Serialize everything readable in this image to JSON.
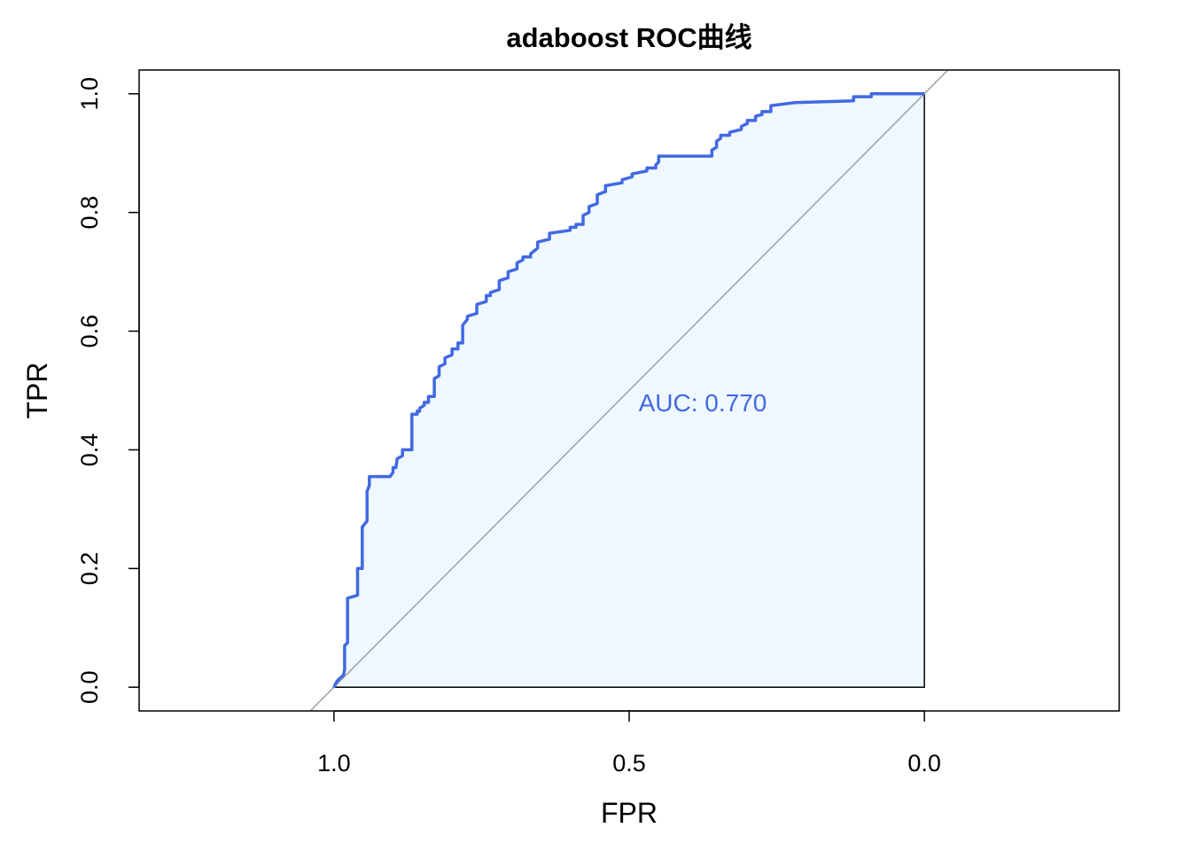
{
  "chart_data": {
    "type": "line",
    "title": "adaboost ROC曲线",
    "xlabel": "FPR",
    "ylabel": "TPR",
    "xlim": [
      1.33,
      -0.33
    ],
    "ylim": [
      -0.04,
      1.04
    ],
    "x_reversed": true,
    "x_ticks": [
      "1.0",
      "0.5",
      "0.0"
    ],
    "x_tick_values": [
      1.0,
      0.5,
      0.0
    ],
    "y_ticks": [
      "0.0",
      "0.2",
      "0.4",
      "0.6",
      "0.8",
      "1.0"
    ],
    "y_tick_values": [
      0.0,
      0.2,
      0.4,
      0.6,
      0.8,
      1.0
    ],
    "grid": false,
    "diagonal_reference": true,
    "annotation": "AUC: 0.770",
    "annotation_pos": [
      0.5,
      0.48
    ],
    "colors": {
      "curve": "#4169E1",
      "fill": "#F0F8FF",
      "diagonal": "#A0A0A0",
      "annotation": "#4169E1"
    },
    "series": [
      {
        "x": [
          1.0,
          0.995,
          0.99,
          0.984,
          0.982,
          0.982,
          0.977,
          0.977,
          0.96,
          0.96,
          0.952,
          0.952,
          0.944,
          0.944,
          0.94,
          0.94,
          0.938,
          0.938,
          0.905,
          0.9,
          0.9,
          0.895,
          0.893,
          0.884,
          0.884,
          0.868,
          0.868,
          0.859,
          0.859,
          0.855,
          0.855,
          0.847,
          0.847,
          0.84,
          0.84,
          0.83,
          0.83,
          0.822,
          0.822,
          0.812,
          0.812,
          0.8,
          0.8,
          0.79,
          0.79,
          0.782,
          0.782,
          0.774,
          0.774,
          0.758,
          0.758,
          0.742,
          0.742,
          0.735,
          0.735,
          0.72,
          0.72,
          0.705,
          0.705,
          0.69,
          0.69,
          0.68,
          0.68,
          0.667,
          0.667,
          0.655,
          0.655,
          0.635,
          0.635,
          0.6,
          0.6,
          0.59,
          0.59,
          0.578,
          0.578,
          0.568,
          0.568,
          0.554,
          0.554,
          0.54,
          0.54,
          0.512,
          0.512,
          0.495,
          0.495,
          0.47,
          0.47,
          0.455,
          0.455,
          0.45,
          0.45,
          0.36,
          0.36,
          0.352,
          0.352,
          0.345,
          0.345,
          0.33,
          0.33,
          0.31,
          0.31,
          0.3,
          0.3,
          0.286,
          0.286,
          0.275,
          0.275,
          0.26,
          0.26,
          0.22,
          0.22,
          0.12,
          0.12,
          0.09,
          0.09,
          0.0
        ],
        "y": [
          0.0,
          0.01,
          0.015,
          0.02,
          0.03,
          0.07,
          0.075,
          0.15,
          0.155,
          0.2,
          0.2,
          0.27,
          0.28,
          0.33,
          0.34,
          0.355,
          0.355,
          0.355,
          0.355,
          0.362,
          0.37,
          0.37,
          0.385,
          0.39,
          0.4,
          0.4,
          0.46,
          0.46,
          0.465,
          0.465,
          0.47,
          0.475,
          0.48,
          0.48,
          0.49,
          0.49,
          0.52,
          0.525,
          0.54,
          0.545,
          0.555,
          0.56,
          0.57,
          0.57,
          0.58,
          0.58,
          0.61,
          0.62,
          0.625,
          0.63,
          0.645,
          0.65,
          0.66,
          0.66,
          0.665,
          0.67,
          0.685,
          0.69,
          0.7,
          0.705,
          0.715,
          0.72,
          0.725,
          0.725,
          0.73,
          0.74,
          0.75,
          0.755,
          0.765,
          0.77,
          0.775,
          0.775,
          0.78,
          0.78,
          0.795,
          0.8,
          0.81,
          0.815,
          0.83,
          0.835,
          0.845,
          0.85,
          0.855,
          0.86,
          0.865,
          0.87,
          0.875,
          0.875,
          0.88,
          0.885,
          0.895,
          0.895,
          0.905,
          0.91,
          0.92,
          0.925,
          0.93,
          0.93,
          0.935,
          0.94,
          0.945,
          0.95,
          0.955,
          0.955,
          0.962,
          0.965,
          0.97,
          0.97,
          0.98,
          0.985,
          0.985,
          0.988,
          0.995,
          0.995,
          1.0,
          1.0
        ]
      }
    ]
  }
}
